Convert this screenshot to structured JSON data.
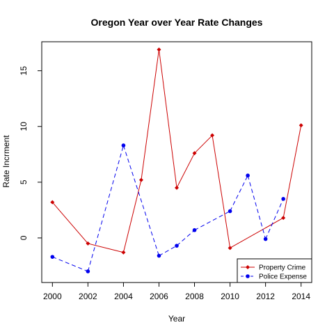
{
  "chart_data": {
    "type": "line",
    "title": "Oregon Year over Year Rate Changes",
    "xlabel": "Year",
    "ylabel": "Rate Incrment",
    "xlim": [
      1999.4,
      2014.6
    ],
    "ylim": [
      -4,
      17.6
    ],
    "x_ticks": [
      2000,
      2002,
      2004,
      2006,
      2008,
      2010,
      2012,
      2014
    ],
    "x_tick_labels": [
      "2000",
      "2002",
      "2004",
      "2006",
      "2008",
      "2010",
      "2012",
      "2014"
    ],
    "y_ticks": [
      0,
      5,
      10,
      15
    ],
    "y_tick_labels": [
      "0",
      "5",
      "10",
      "15"
    ],
    "legend_position": "bottom-right",
    "series": [
      {
        "name": "Property Crime",
        "color": "#cc0000",
        "line_style": "solid",
        "marker": "diamond",
        "points": [
          {
            "x": 2000,
            "y": 3.2
          },
          {
            "x": 2002,
            "y": -0.5
          },
          {
            "x": 2004,
            "y": -1.3
          },
          {
            "x": 2005,
            "y": 5.2
          },
          {
            "x": 2006,
            "y": 16.9
          },
          {
            "x": 2007,
            "y": 4.5
          },
          {
            "x": 2008,
            "y": 7.6
          },
          {
            "x": 2009,
            "y": 9.2
          },
          {
            "x": 2010,
            "y": -0.9
          },
          {
            "x": 2013,
            "y": 1.8
          },
          {
            "x": 2014,
            "y": 10.1
          }
        ]
      },
      {
        "name": "Police Expense",
        "color": "#0000ee",
        "line_style": "dashed",
        "marker": "circle",
        "points": [
          {
            "x": 2000,
            "y": -1.7
          },
          {
            "x": 2002,
            "y": -3.0
          },
          {
            "x": 2004,
            "y": 8.3
          },
          {
            "x": 2006,
            "y": -1.6
          },
          {
            "x": 2007,
            "y": -0.7
          },
          {
            "x": 2008,
            "y": 0.7
          },
          {
            "x": 2010,
            "y": 2.4
          },
          {
            "x": 2011,
            "y": 5.6
          },
          {
            "x": 2012,
            "y": -0.1
          },
          {
            "x": 2013,
            "y": 3.5
          }
        ]
      }
    ]
  }
}
